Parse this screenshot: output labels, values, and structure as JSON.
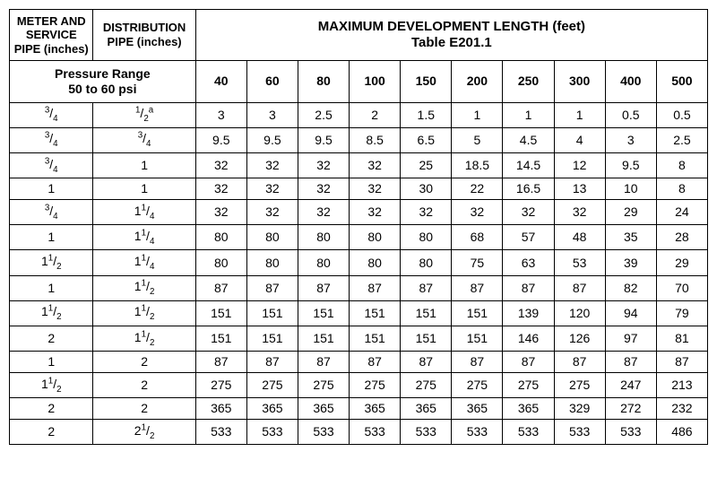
{
  "table": {
    "type": "table",
    "background_color": "#ffffff",
    "text_color": "#000000",
    "border_color": "#000000",
    "font_family": "Verdana, sans-serif",
    "header": {
      "meter_service_col": "METER AND SERVICE PIPE (inches)",
      "distribution_col": "DISTRIBUTION PIPE (inches)",
      "main_title_line1": "MAXIMUM DEVELOPMENT LENGTH (feet)",
      "main_title_line2": "Table E201.1",
      "pressure_range_line1": "Pressure Range",
      "pressure_range_line2": "50 to 60 psi",
      "header_fontsize": 13,
      "title_fontsize": 15
    },
    "length_columns": [
      "40",
      "60",
      "80",
      "100",
      "150",
      "200",
      "250",
      "300",
      "400",
      "500"
    ],
    "col_widths": {
      "meter": 90,
      "distribution": 110,
      "lengths": [
        55,
        55,
        55,
        55,
        55,
        55,
        55,
        55,
        55,
        55
      ]
    },
    "rows": [
      {
        "meter": {
          "int": "",
          "num": "3",
          "den": "4"
        },
        "dist": {
          "int": "",
          "num": "1",
          "den": "2",
          "sup_after": "a"
        },
        "vals": [
          "3",
          "3",
          "2.5",
          "2",
          "1.5",
          "1",
          "1",
          "1",
          "0.5",
          "0.5"
        ]
      },
      {
        "meter": {
          "int": "",
          "num": "3",
          "den": "4"
        },
        "dist": {
          "int": "",
          "num": "3",
          "den": "4"
        },
        "vals": [
          "9.5",
          "9.5",
          "9.5",
          "8.5",
          "6.5",
          "5",
          "4.5",
          "4",
          "3",
          "2.5"
        ]
      },
      {
        "meter": {
          "int": "",
          "num": "3",
          "den": "4"
        },
        "dist": {
          "int": "1"
        },
        "vals": [
          "32",
          "32",
          "32",
          "32",
          "25",
          "18.5",
          "14.5",
          "12",
          "9.5",
          "8"
        ]
      },
      {
        "meter": {
          "int": "1"
        },
        "dist": {
          "int": "1"
        },
        "vals": [
          "32",
          "32",
          "32",
          "32",
          "30",
          "22",
          "16.5",
          "13",
          "10",
          "8"
        ]
      },
      {
        "meter": {
          "int": "",
          "num": "3",
          "den": "4"
        },
        "dist": {
          "int": "1",
          "num": "1",
          "den": "4"
        },
        "vals": [
          "32",
          "32",
          "32",
          "32",
          "32",
          "32",
          "32",
          "32",
          "29",
          "24"
        ]
      },
      {
        "meter": {
          "int": "1"
        },
        "dist": {
          "int": "1",
          "num": "1",
          "den": "4"
        },
        "vals": [
          "80",
          "80",
          "80",
          "80",
          "80",
          "68",
          "57",
          "48",
          "35",
          "28"
        ]
      },
      {
        "meter": {
          "int": "1",
          "num": "1",
          "den": "2"
        },
        "dist": {
          "int": "1",
          "num": "1",
          "den": "4"
        },
        "vals": [
          "80",
          "80",
          "80",
          "80",
          "80",
          "75",
          "63",
          "53",
          "39",
          "29"
        ]
      },
      {
        "meter": {
          "int": "1"
        },
        "dist": {
          "int": "1",
          "num": "1",
          "den": "2"
        },
        "vals": [
          "87",
          "87",
          "87",
          "87",
          "87",
          "87",
          "87",
          "87",
          "82",
          "70"
        ]
      },
      {
        "meter": {
          "int": "1",
          "num": "1",
          "den": "2"
        },
        "dist": {
          "int": "1",
          "num": "1",
          "den": "2"
        },
        "vals": [
          "151",
          "151",
          "151",
          "151",
          "151",
          "151",
          "139",
          "120",
          "94",
          "79"
        ]
      },
      {
        "meter": {
          "int": "2"
        },
        "dist": {
          "int": "1",
          "num": "1",
          "den": "2"
        },
        "vals": [
          "151",
          "151",
          "151",
          "151",
          "151",
          "151",
          "146",
          "126",
          "97",
          "81"
        ]
      },
      {
        "meter": {
          "int": "1"
        },
        "dist": {
          "int": "2"
        },
        "vals": [
          "87",
          "87",
          "87",
          "87",
          "87",
          "87",
          "87",
          "87",
          "87",
          "87"
        ]
      },
      {
        "meter": {
          "int": "1",
          "num": "1",
          "den": "2"
        },
        "dist": {
          "int": "2"
        },
        "vals": [
          "275",
          "275",
          "275",
          "275",
          "275",
          "275",
          "275",
          "275",
          "247",
          "213"
        ]
      },
      {
        "meter": {
          "int": "2"
        },
        "dist": {
          "int": "2"
        },
        "vals": [
          "365",
          "365",
          "365",
          "365",
          "365",
          "365",
          "365",
          "329",
          "272",
          "232"
        ]
      },
      {
        "meter": {
          "int": "2"
        },
        "dist": {
          "int": "2",
          "num": "1",
          "den": "2"
        },
        "vals": [
          "533",
          "533",
          "533",
          "533",
          "533",
          "533",
          "533",
          "533",
          "533",
          "486"
        ]
      }
    ]
  }
}
